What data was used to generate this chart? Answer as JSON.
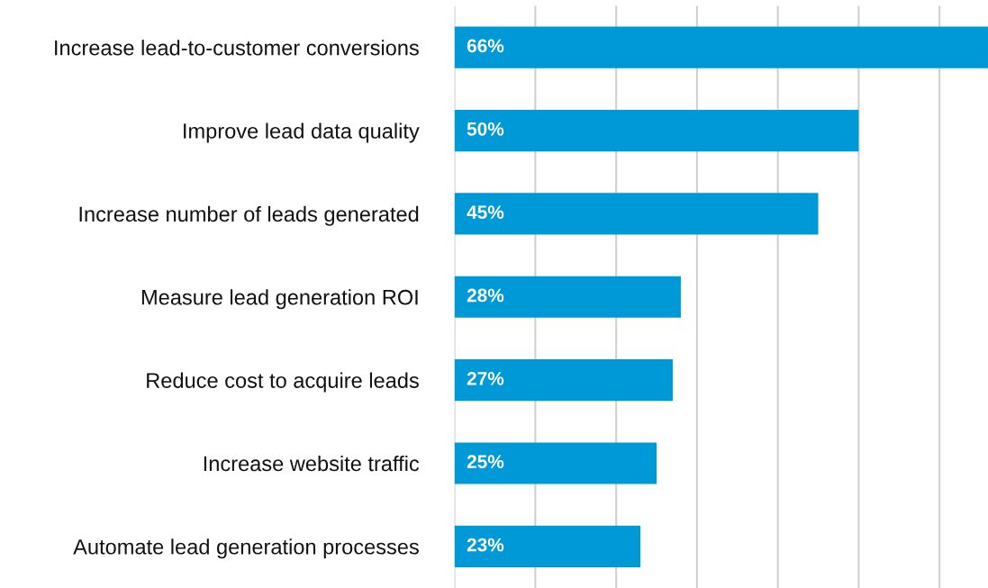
{
  "chart_data": {
    "type": "bar",
    "orientation": "horizontal",
    "categories": [
      "Increase lead-to-customer conversions",
      "Improve lead data quality",
      "Increase number of leads generated",
      "Measure lead generation ROI",
      "Reduce cost to acquire leads",
      "Increase website traffic",
      "Automate lead generation processes"
    ],
    "values": [
      66,
      50,
      45,
      28,
      27,
      25,
      23
    ],
    "value_labels": [
      "66%",
      "50%",
      "45%",
      "28%",
      "27%",
      "25%",
      "23%"
    ],
    "color": "#0099d8",
    "xlim": [
      0,
      66
    ],
    "xticks": [
      {
        "value": 0,
        "label": null
      },
      {
        "value": 10,
        "label": null
      },
      {
        "value": 20,
        "label": null
      },
      {
        "value": 30,
        "label": null
      },
      {
        "value": 40,
        "label": null
      },
      {
        "value": 50,
        "label": null
      },
      {
        "value": 60,
        "label": null
      }
    ],
    "tick_labels": "y",
    "grid": "x",
    "legend": false
  }
}
